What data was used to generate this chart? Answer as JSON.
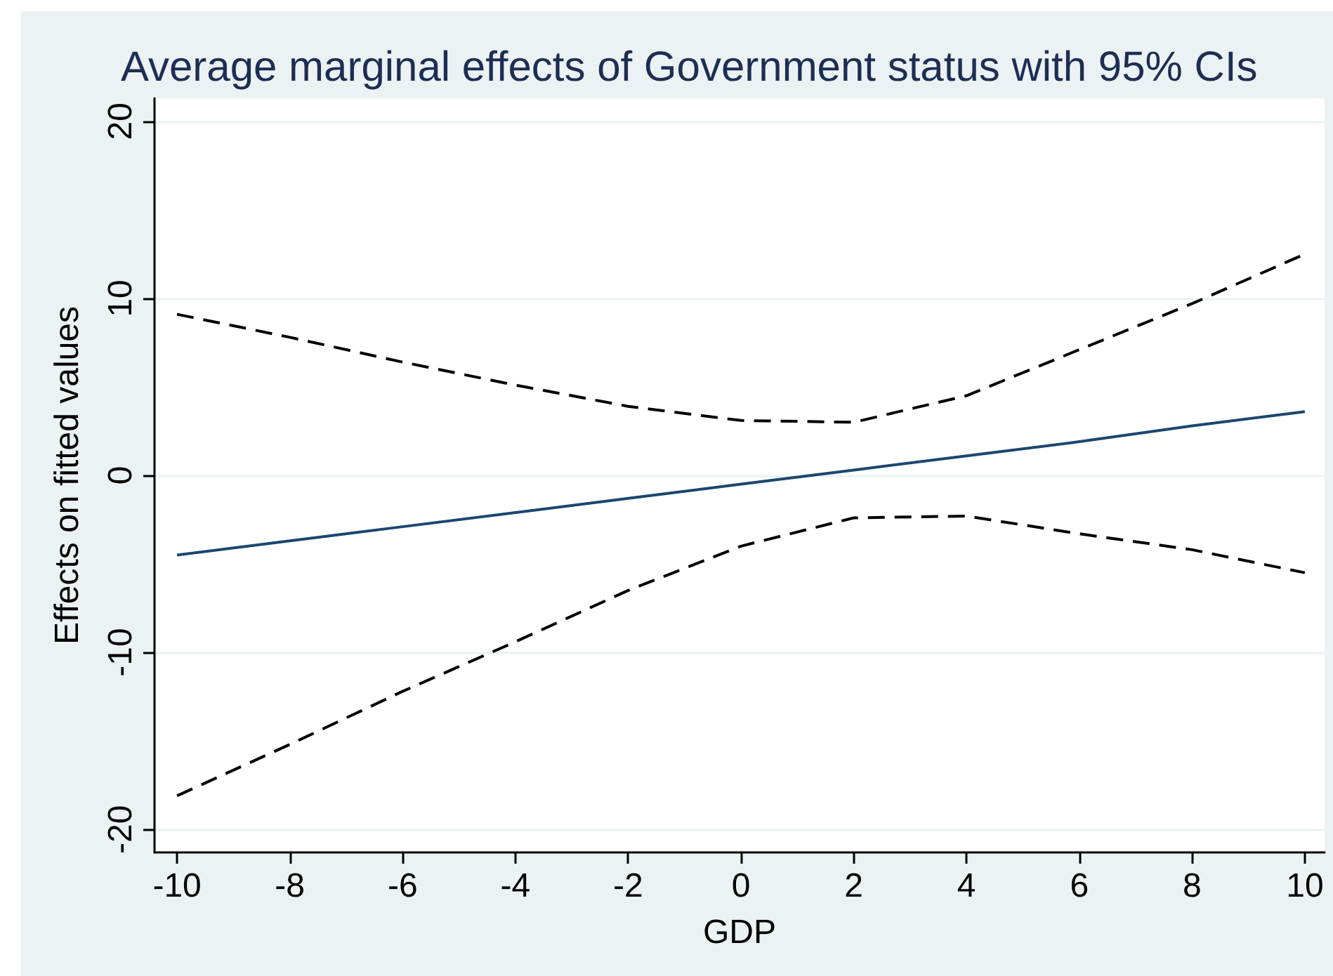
{
  "chart_data": {
    "type": "line",
    "title": "Average marginal effects of Government status with 95% CIs",
    "xlabel": "GDP",
    "ylabel": "Effects on fitted values",
    "x": [
      -10,
      -8,
      -6,
      -4,
      -2,
      0,
      2,
      4,
      6,
      8,
      10
    ],
    "series": [
      {
        "color": "#1a476f",
        "line_style": "solid",
        "values": [
          -4.5,
          -3.7,
          -2.9,
          -2.1,
          -1.3,
          -0.5,
          0.3,
          1.1,
          1.9,
          2.8,
          3.6
        ]
      },
      {
        "color": "#000000",
        "line_style": "dashed",
        "values": [
          9.1,
          7.8,
          6.4,
          5.1,
          3.9,
          3.1,
          3.0,
          4.5,
          7.1,
          9.7,
          12.5
        ]
      },
      {
        "color": "#000000",
        "line_style": "dashed",
        "values": [
          -18.1,
          -15.2,
          -12.2,
          -9.4,
          -6.5,
          -4.0,
          -2.4,
          -2.3,
          -3.3,
          -4.2,
          -5.5
        ]
      }
    ],
    "xlim": [
      -10.4,
      10.35
    ],
    "xticks": [
      -10,
      -8,
      -6,
      -4,
      -2,
      0,
      2,
      4,
      6,
      8,
      10
    ],
    "ylim": [
      -21.3,
      21.3
    ],
    "yticks": [
      -20,
      -10,
      0,
      10,
      20
    ],
    "grid": "y",
    "marker": "none"
  }
}
